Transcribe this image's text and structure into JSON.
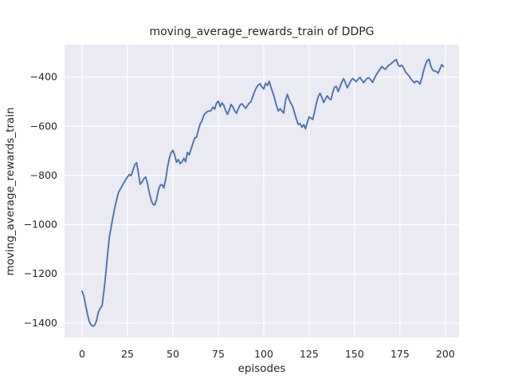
{
  "figure": {
    "title": "moving_average_rewards_train of DDPG",
    "xlabel": "episodes",
    "ylabel": "moving_average_rewards_train"
  },
  "chart_data": {
    "type": "line",
    "title": "moving_average_rewards_train of DDPG",
    "xlabel": "episodes",
    "ylabel": "moving_average_rewards_train",
    "grid": true,
    "legend": false,
    "xlim": [
      -9.65,
      207.5
    ],
    "ylim": [
      -1459,
      -268
    ],
    "xticks": {
      "values": [
        0,
        25,
        50,
        75,
        100,
        125,
        150,
        175,
        200
      ],
      "labels": [
        "0",
        "25",
        "50",
        "75",
        "100",
        "125",
        "150",
        "175",
        "200"
      ]
    },
    "yticks": {
      "values": [
        -400,
        -600,
        -800,
        -1000,
        -1200,
        -1400
      ],
      "labels": [
        "−400",
        "−600",
        "−800",
        "−1000",
        "−1200",
        "−1400"
      ]
    },
    "style": {
      "plot_bg": "#EAEAF2",
      "grid_color": "#FFFFFF",
      "line_color": "#4C72B0",
      "text_color": "#262626"
    },
    "series": [
      {
        "name": "moving_average_rewards_train",
        "color": "#4C72B0",
        "x_start": 0,
        "x_step": 1,
        "values": [
          -1270,
          -1292,
          -1330,
          -1365,
          -1394,
          -1408,
          -1413,
          -1408,
          -1390,
          -1355,
          -1340,
          -1330,
          -1270,
          -1205,
          -1125,
          -1050,
          -1010,
          -970,
          -932,
          -900,
          -870,
          -856,
          -843,
          -830,
          -817,
          -806,
          -796,
          -801,
          -779,
          -757,
          -748,
          -790,
          -836,
          -827,
          -813,
          -806,
          -833,
          -869,
          -899,
          -917,
          -920,
          -897,
          -861,
          -840,
          -837,
          -851,
          -816,
          -768,
          -732,
          -707,
          -698,
          -718,
          -746,
          -735,
          -752,
          -745,
          -730,
          -744,
          -706,
          -716,
          -692,
          -670,
          -648,
          -644,
          -616,
          -590,
          -579,
          -556,
          -546,
          -540,
          -538,
          -536,
          -522,
          -530,
          -506,
          -497,
          -520,
          -505,
          -515,
          -535,
          -551,
          -535,
          -511,
          -520,
          -537,
          -547,
          -529,
          -513,
          -508,
          -517,
          -527,
          -517,
          -506,
          -500,
          -478,
          -458,
          -443,
          -432,
          -427,
          -440,
          -448,
          -425,
          -434,
          -417,
          -442,
          -462,
          -486,
          -515,
          -538,
          -528,
          -538,
          -546,
          -495,
          -470,
          -492,
          -507,
          -520,
          -546,
          -572,
          -593,
          -588,
          -604,
          -593,
          -610,
          -584,
          -562,
          -567,
          -572,
          -540,
          -505,
          -480,
          -466,
          -482,
          -503,
          -489,
          -476,
          -487,
          -492,
          -461,
          -441,
          -438,
          -459,
          -439,
          -420,
          -406,
          -423,
          -443,
          -429,
          -414,
          -405,
          -412,
          -418,
          -408,
          -401,
          -412,
          -422,
          -413,
          -404,
          -403,
          -412,
          -421,
          -404,
          -390,
          -378,
          -368,
          -357,
          -364,
          -368,
          -358,
          -351,
          -346,
          -339,
          -333,
          -329,
          -350,
          -357,
          -351,
          -362,
          -378,
          -387,
          -395,
          -407,
          -416,
          -423,
          -416,
          -419,
          -428,
          -405,
          -375,
          -350,
          -333,
          -327,
          -356,
          -371,
          -375,
          -377,
          -384,
          -367,
          -349,
          -357
        ]
      }
    ]
  }
}
